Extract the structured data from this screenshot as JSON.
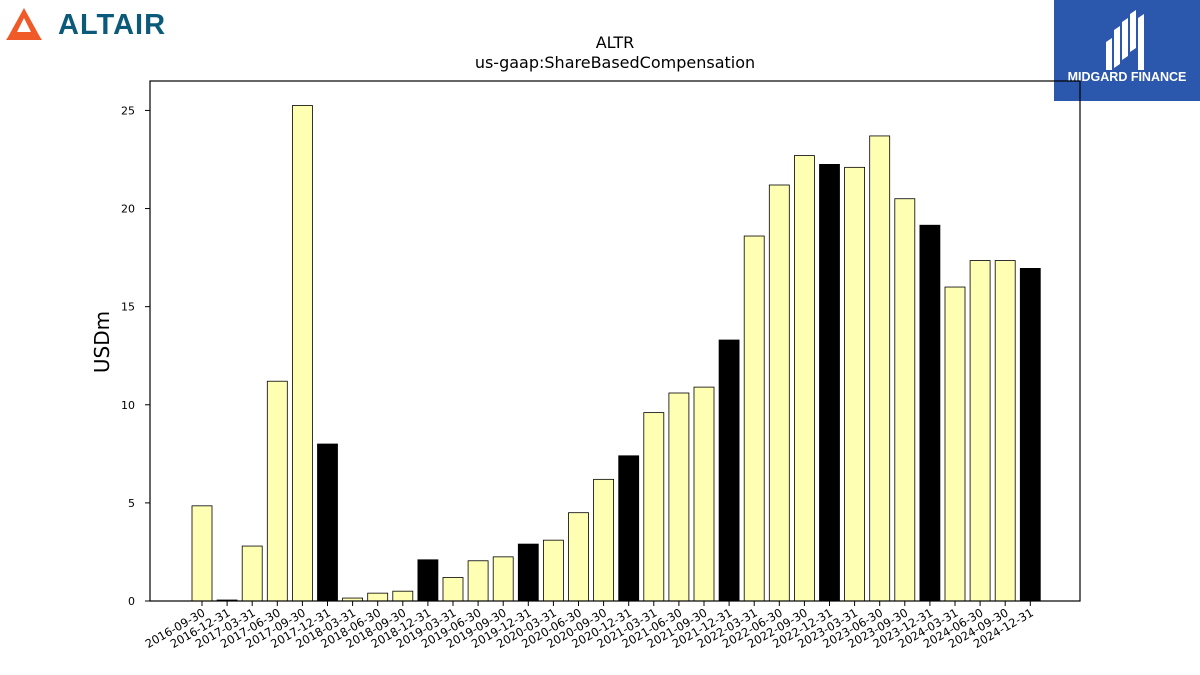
{
  "branding": {
    "left_logo_text": "ALTAIR",
    "left_logo_color": "#0b5a7a",
    "left_logo_mark_color": "#f05a28",
    "right_logo_text": "MIDGARD FINANCE",
    "right_logo_bg": "#2b57ad"
  },
  "chart_data": {
    "type": "bar",
    "title": "ALTR",
    "subtitle": "us-gaap:ShareBasedCompensation",
    "xlabel": "",
    "ylabel": "USDm",
    "ylim": [
      0,
      26.5
    ],
    "yticks": [
      0,
      5,
      10,
      15,
      20,
      25
    ],
    "grid": false,
    "colors": {
      "quarter": "#ffffb3",
      "year_end": "#000000"
    },
    "categories": [
      "2016-09-30",
      "2016-12-31",
      "2017-03-31",
      "2017-06-30",
      "2017-09-30",
      "2017-12-31",
      "2018-03-31",
      "2018-06-30",
      "2018-09-30",
      "2018-12-31",
      "2019-03-31",
      "2019-06-30",
      "2019-09-30",
      "2019-12-31",
      "2020-03-31",
      "2020-06-30",
      "2020-09-30",
      "2020-12-31",
      "2021-03-31",
      "2021-06-30",
      "2021-09-30",
      "2021-12-31",
      "2022-03-31",
      "2022-06-30",
      "2022-09-30",
      "2022-12-31",
      "2023-03-31",
      "2023-06-30",
      "2023-09-30",
      "2023-12-31",
      "2024-03-31",
      "2024-06-30",
      "2024-09-30",
      "2024-12-31"
    ],
    "values": [
      4.85,
      0.05,
      2.8,
      11.2,
      25.25,
      8.0,
      0.15,
      0.4,
      0.5,
      2.1,
      1.2,
      2.05,
      2.25,
      2.9,
      3.1,
      4.5,
      6.2,
      7.4,
      9.6,
      10.6,
      10.9,
      13.3,
      18.6,
      21.2,
      22.7,
      22.25,
      22.1,
      23.7,
      20.5,
      19.15,
      16.0,
      17.35,
      17.35,
      16.95
    ]
  }
}
